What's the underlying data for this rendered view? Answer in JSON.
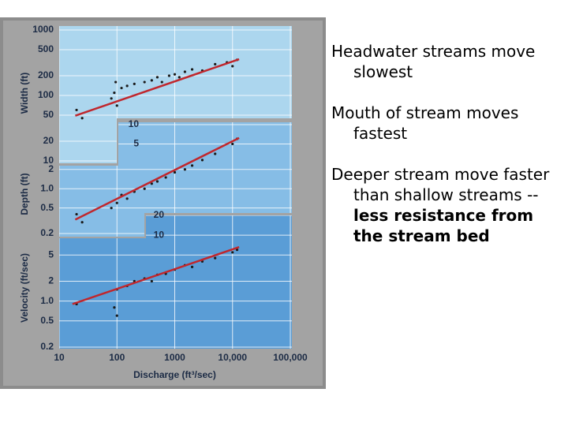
{
  "slide": {
    "bullets": [
      {
        "text": "Headwater streams move slowest"
      },
      {
        "text": "Mouth of stream moves fastest"
      },
      {
        "text": "Deeper stream move faster than shallow streams --",
        "bold": "less resistance from the stream bed"
      }
    ]
  },
  "chart_data": [
    {
      "type": "scatter",
      "ylabel": "Width (ft)",
      "log_scale": true,
      "grid": true,
      "xlim": [
        10,
        100000
      ],
      "ylim": [
        10,
        1000
      ],
      "yticks": [
        1000,
        500,
        200,
        100,
        50,
        20,
        10
      ],
      "series": [
        {
          "kind": "points",
          "color": "#1a1a1a",
          "x": [
            20,
            25,
            80,
            90,
            100,
            95,
            120,
            150,
            200,
            300,
            400,
            500,
            600,
            800,
            1000,
            1200,
            1500,
            2000,
            3000,
            5000,
            8000,
            10000,
            12000
          ],
          "values": [
            60,
            45,
            90,
            110,
            70,
            160,
            130,
            140,
            150,
            160,
            170,
            190,
            160,
            200,
            210,
            190,
            230,
            250,
            240,
            300,
            320,
            280,
            350
          ]
        },
        {
          "kind": "trend",
          "color": "#c0272d",
          "x": [
            19,
            13000
          ],
          "values": [
            49,
            358
          ]
        }
      ]
    },
    {
      "type": "scatter",
      "ylabel": "Depth (ft)",
      "log_scale": true,
      "grid": true,
      "xlim": [
        10,
        100000
      ],
      "ylim": [
        0.2,
        10
      ],
      "yticks": [
        10,
        5,
        2,
        {
          "value": 1,
          "label": "1.0"
        },
        0.5,
        0.2
      ],
      "series": [
        {
          "kind": "points",
          "color": "#1a1a1a",
          "x": [
            20,
            25,
            80,
            100,
            120,
            150,
            200,
            300,
            400,
            500,
            700,
            1000,
            1500,
            2000,
            3000,
            5000,
            10000,
            12000
          ],
          "values": [
            0.4,
            0.3,
            0.5,
            0.6,
            0.8,
            0.7,
            0.9,
            1.0,
            1.2,
            1.3,
            1.5,
            1.8,
            2.0,
            2.3,
            2.8,
            3.5,
            5.0,
            6.0
          ]
        },
        {
          "kind": "trend",
          "color": "#c0272d",
          "x": [
            19,
            13000
          ],
          "values": [
            0.33,
            6.2
          ]
        }
      ]
    },
    {
      "type": "scatter",
      "ylabel": "Velocity (ft/sec)",
      "xlabel": "Discharge (ft³/sec)",
      "log_scale": true,
      "grid": true,
      "xlim": [
        10,
        100000
      ],
      "xticks": [
        10,
        100,
        1000,
        {
          "value": 10000,
          "label": "10,000"
        },
        {
          "value": 100000,
          "label": "100,000"
        }
      ],
      "ylim": [
        0.2,
        20
      ],
      "yticks": [
        20,
        10,
        5,
        2,
        {
          "value": 1,
          "label": "1.0"
        },
        0.5,
        0.2
      ],
      "series": [
        {
          "kind": "points",
          "color": "#1a1a1a",
          "x": [
            20,
            90,
            100,
            100,
            150,
            200,
            300,
            400,
            500,
            700,
            1000,
            1500,
            2000,
            3000,
            5000,
            10000,
            12000
          ],
          "values": [
            0.9,
            0.8,
            0.6,
            1.5,
            1.7,
            2.0,
            2.2,
            2.0,
            2.5,
            2.6,
            3.0,
            3.5,
            3.3,
            4.0,
            4.5,
            5.5,
            6.0
          ]
        },
        {
          "kind": "trend",
          "color": "#c0272d",
          "x": [
            17,
            13000
          ],
          "values": [
            0.9,
            6.6
          ]
        }
      ]
    }
  ]
}
